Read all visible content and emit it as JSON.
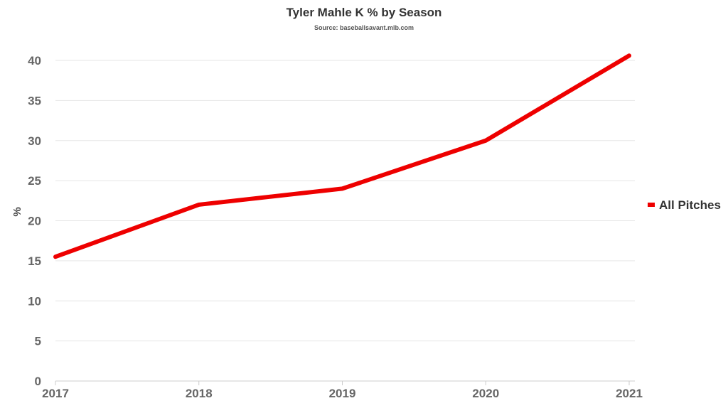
{
  "chart_data": {
    "type": "line",
    "title": "Tyler Mahle K % by Season",
    "subtitle": "Source: baseballsavant.mlb.com",
    "xlabel": "",
    "ylabel": "%",
    "categories": [
      "2017",
      "2018",
      "2019",
      "2020",
      "2021"
    ],
    "series": [
      {
        "name": "All Pitches",
        "color": "#ee0000",
        "values": [
          15.5,
          22.0,
          24.0,
          30.0,
          40.6
        ]
      }
    ],
    "ylim": [
      0,
      40
    ],
    "yticks": [
      0,
      5,
      10,
      15,
      20,
      25,
      30,
      35,
      40
    ],
    "grid": true,
    "legend_position": "right"
  }
}
